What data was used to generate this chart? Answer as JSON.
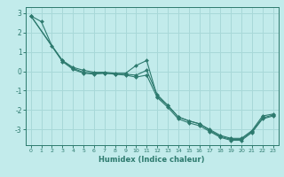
{
  "title": "",
  "xlabel": "Humidex (Indice chaleur)",
  "ylabel": "",
  "xlim": [
    -0.5,
    23.5
  ],
  "ylim": [
    -3.8,
    3.3
  ],
  "xticks": [
    0,
    1,
    2,
    3,
    4,
    5,
    6,
    7,
    8,
    9,
    10,
    11,
    12,
    13,
    14,
    15,
    16,
    17,
    18,
    19,
    20,
    21,
    22,
    23
  ],
  "yticks": [
    -3,
    -2,
    -1,
    0,
    1,
    2,
    3
  ],
  "bg_color": "#c2ebeb",
  "grid_color": "#a8d8d8",
  "line_color": "#2d7a6e",
  "lines": [
    {
      "x": [
        0,
        1,
        2,
        3,
        4,
        5,
        6,
        7,
        8,
        9,
        10,
        11,
        12,
        13,
        14,
        15,
        16,
        17,
        18,
        19,
        20,
        21,
        22,
        23
      ],
      "y": [
        2.85,
        2.55,
        1.3,
        0.55,
        0.2,
        0.05,
        -0.05,
        -0.05,
        -0.1,
        -0.1,
        0.3,
        0.55,
        -1.3,
        -1.75,
        -2.35,
        -2.55,
        -2.7,
        -3.0,
        -3.3,
        -3.45,
        -3.45,
        -3.05,
        -2.3,
        -2.2
      ]
    },
    {
      "x": [
        0,
        3,
        4,
        5,
        6,
        7,
        8,
        9,
        10,
        11,
        12,
        13,
        14,
        15,
        16,
        17,
        18,
        19,
        20,
        21,
        22,
        23
      ],
      "y": [
        2.85,
        0.55,
        0.15,
        -0.05,
        -0.1,
        -0.1,
        -0.15,
        -0.15,
        -0.2,
        0.05,
        -1.2,
        -1.75,
        -2.35,
        -2.55,
        -2.7,
        -3.05,
        -3.35,
        -3.5,
        -3.5,
        -3.1,
        -2.4,
        -2.25
      ]
    },
    {
      "x": [
        0,
        3,
        4,
        5,
        6,
        7,
        8,
        9,
        10,
        11,
        12,
        13,
        14,
        15,
        16,
        17,
        18,
        19,
        20,
        21,
        22,
        23
      ],
      "y": [
        2.85,
        0.5,
        0.1,
        -0.1,
        -0.15,
        -0.1,
        -0.15,
        -0.2,
        -0.3,
        -0.2,
        -1.35,
        -1.85,
        -2.45,
        -2.65,
        -2.8,
        -3.1,
        -3.4,
        -3.55,
        -3.55,
        -3.15,
        -2.45,
        -2.3
      ]
    }
  ]
}
